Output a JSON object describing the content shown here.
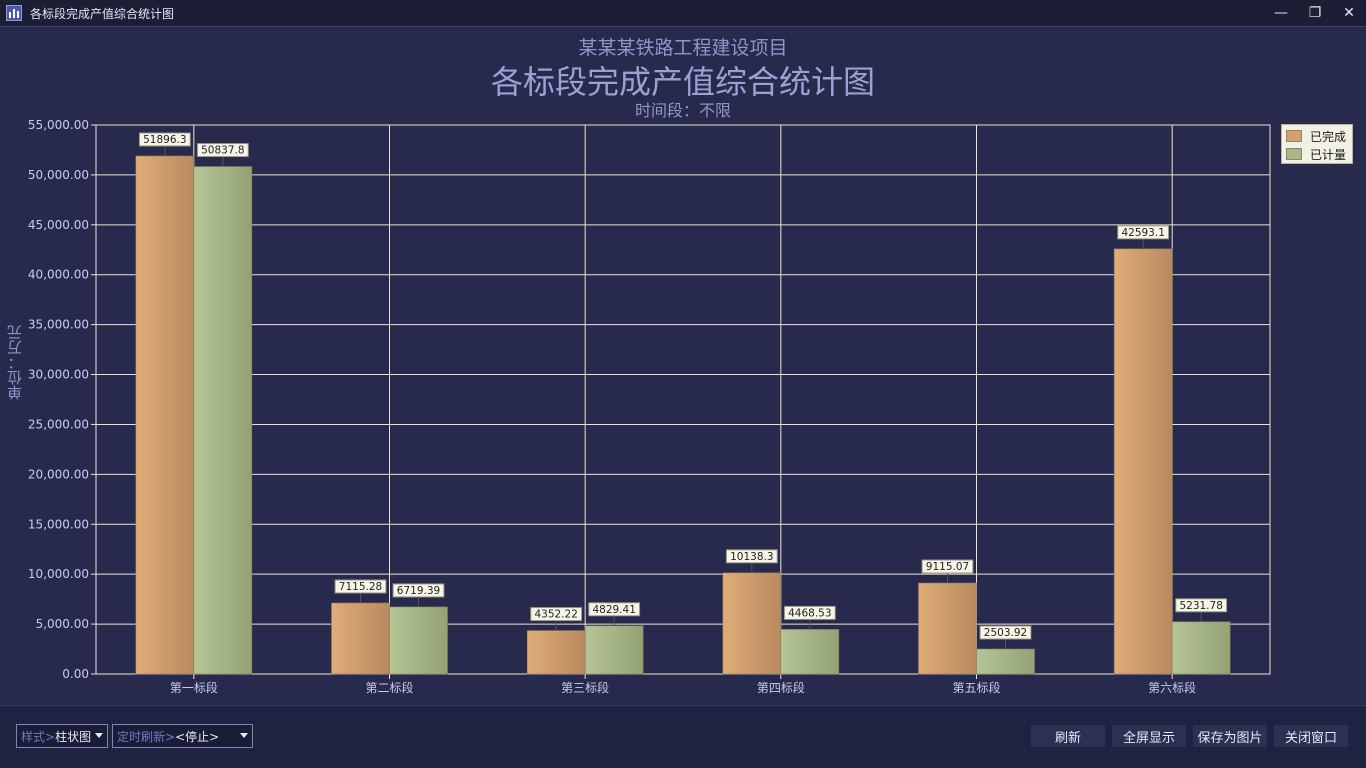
{
  "window": {
    "title": "各标段完成产值综合统计图",
    "minimize_glyph": "—",
    "restore_glyph": "❐",
    "close_glyph": "✕"
  },
  "chart_header": {
    "subtitle": "某某某铁路工程建设项目",
    "title": "各标段完成产值综合统计图",
    "period": "时间段：不限"
  },
  "chart_data": {
    "type": "bar",
    "title": "各标段完成产值综合统计图",
    "subtitle": "某某某铁路工程建设项目",
    "xlabel": "",
    "ylabel": "单位：万元",
    "ylim": [
      0,
      55000
    ],
    "yticks": [
      "0.00",
      "5,000.00",
      "10,000.00",
      "15,000.00",
      "20,000.00",
      "25,000.00",
      "30,000.00",
      "35,000.00",
      "40,000.00",
      "45,000.00",
      "50,000.00",
      "55,000.00"
    ],
    "categories": [
      "第一标段",
      "第二标段",
      "第三标段",
      "第四标段",
      "第五标段",
      "第六标段"
    ],
    "series": [
      {
        "name": "已完成",
        "color": "#d4a06e",
        "values": [
          51896.3,
          7115.28,
          4352.22,
          10138.3,
          9115.07,
          42593.1
        ],
        "labels": [
          "51896.3",
          "7115.28",
          "4352.22",
          "10138.3",
          "9115.07",
          "42593.1"
        ]
      },
      {
        "name": "已计量",
        "color": "#a9b88a",
        "values": [
          50837.8,
          6719.39,
          4829.41,
          4468.53,
          2503.92,
          5231.78
        ],
        "labels": [
          "50837.8",
          "6719.39",
          "4829.41",
          "4468.53",
          "2503.92",
          "5231.78"
        ]
      }
    ],
    "grid": true,
    "legend": "top-right"
  },
  "toolbar": {
    "style_prefix": "样式>",
    "style_value": "柱状图",
    "refresh_prefix": "定时刷新>",
    "refresh_value": "<停止>",
    "refresh_button": "刷新",
    "fullscreen_button": "全屏显示",
    "save_image_button": "保存为图片",
    "close_window_button": "关闭窗口"
  }
}
